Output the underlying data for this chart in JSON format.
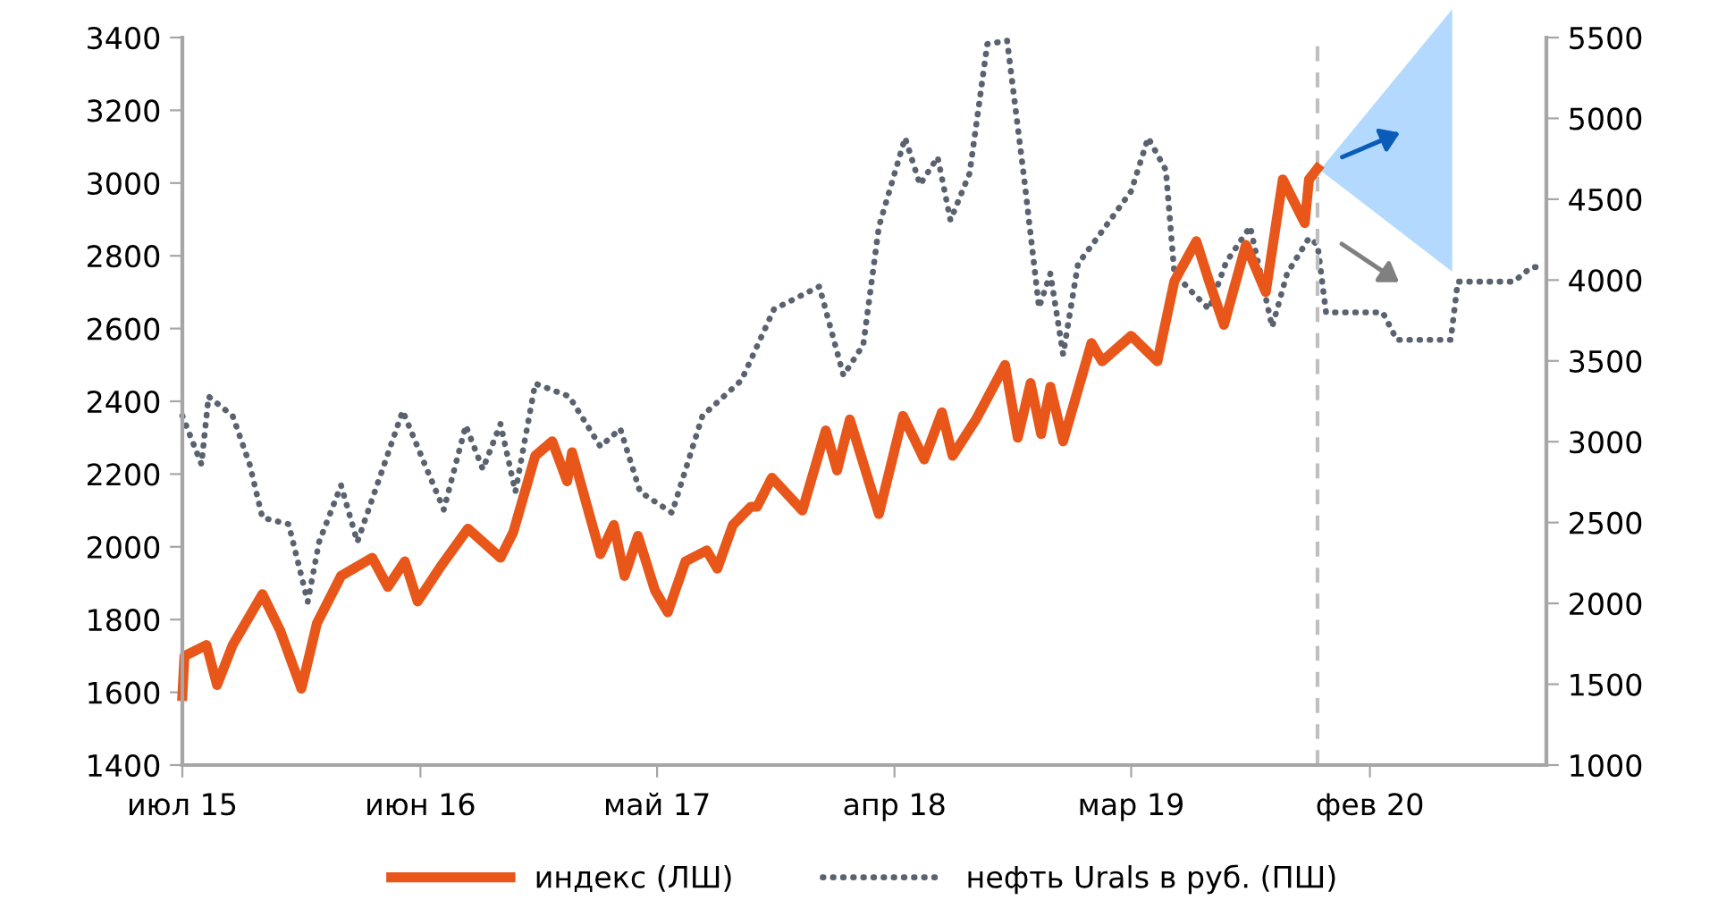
{
  "chart_data": {
    "type": "line",
    "xlim": [
      "2015-07-01",
      "2020-10-07"
    ],
    "xticks": [
      {
        "value": "2015-07-01",
        "label": "июл 15"
      },
      {
        "value": "2016-06-01",
        "label": "июн 16"
      },
      {
        "value": "2017-05-01",
        "label": "май 17"
      },
      {
        "value": "2018-04-01",
        "label": "апр 18"
      },
      {
        "value": "2019-03-01",
        "label": "мар 19"
      },
      {
        "value": "2020-02-01",
        "label": "фев 20"
      }
    ],
    "ylim": [
      1400,
      3400
    ],
    "yticks": [
      1400,
      1600,
      1800,
      2000,
      2200,
      2400,
      2600,
      2800,
      3000,
      3200,
      3400
    ],
    "y2lim": [
      1000,
      5500
    ],
    "y2ticks": [
      1000,
      1500,
      2000,
      2500,
      3000,
      3500,
      4000,
      4500,
      5000,
      5500
    ],
    "grid": false,
    "legend": "bottom",
    "ref_lines": [
      {
        "axis": "x",
        "value": "2019-11-19",
        "color": "#bfbfbf",
        "line_style": "dashed"
      }
    ],
    "series": [
      {
        "name": "индекс (ЛШ)",
        "color": "#e8561a",
        "line_style": "solid",
        "marker": "none",
        "x": [
          "2015-07-01",
          "2015-07-04",
          "2015-08-04",
          "2015-08-19",
          "2015-09-10",
          "2015-10-22",
          "2015-11-16",
          "2015-12-16",
          "2016-01-07",
          "2016-02-10",
          "2016-03-25",
          "2016-04-16",
          "2016-05-10",
          "2016-05-28",
          "2016-07-01",
          "2016-08-07",
          "2016-09-22",
          "2016-10-10",
          "2016-11-10",
          "2016-12-04",
          "2016-12-25",
          "2017-01-01",
          "2017-02-10",
          "2017-03-01",
          "2017-03-16",
          "2017-04-04",
          "2017-04-28",
          "2017-05-16",
          "2017-06-10",
          "2017-07-10",
          "2017-07-25",
          "2017-08-16",
          "2017-09-10",
          "2017-09-19",
          "2017-10-10",
          "2017-11-22",
          "2017-12-25",
          "2018-01-10",
          "2018-01-28",
          "2018-03-10",
          "2018-04-13",
          "2018-05-13",
          "2018-06-07",
          "2018-06-22",
          "2018-07-25",
          "2018-09-04",
          "2018-09-22",
          "2018-10-10",
          "2018-10-25",
          "2018-11-07",
          "2018-11-25",
          "2019-01-04",
          "2019-01-19",
          "2019-03-01",
          "2019-04-07",
          "2019-05-01",
          "2019-06-01",
          "2019-06-19",
          "2019-07-10",
          "2019-08-10",
          "2019-09-07",
          "2019-10-01",
          "2019-11-01",
          "2019-11-07",
          "2019-11-19"
        ],
        "values": [
          1590,
          1700,
          1730,
          1620,
          1730,
          1870,
          1770,
          1610,
          1790,
          1920,
          1970,
          1890,
          1960,
          1850,
          1950,
          2050,
          1970,
          2040,
          2250,
          2290,
          2180,
          2260,
          1980,
          2060,
          1920,
          2030,
          1880,
          1820,
          1960,
          1990,
          1940,
          2060,
          2110,
          2110,
          2190,
          2100,
          2320,
          2210,
          2350,
          2090,
          2360,
          2240,
          2370,
          2250,
          2350,
          2500,
          2300,
          2450,
          2310,
          2440,
          2290,
          2560,
          2510,
          2580,
          2510,
          2730,
          2840,
          2730,
          2610,
          2830,
          2700,
          3010,
          2890,
          3010,
          3040
        ]
      },
      {
        "name": "нефть Urals в руб. (ПШ)",
        "color": "#5a6270",
        "axis": "y2",
        "line_style": "dotted",
        "marker": "none",
        "x": [
          "2015-07-01",
          "2015-07-28",
          "2015-08-07",
          "2015-09-10",
          "2015-10-04",
          "2015-10-22",
          "2015-11-28",
          "2015-12-25",
          "2016-01-10",
          "2016-02-10",
          "2016-03-04",
          "2016-05-07",
          "2016-06-10",
          "2016-07-04",
          "2016-08-04",
          "2016-08-28",
          "2016-09-22",
          "2016-10-13",
          "2016-11-10",
          "2016-12-28",
          "2017-02-10",
          "2017-03-10",
          "2017-04-07",
          "2017-05-22",
          "2017-07-04",
          "2017-08-28",
          "2017-10-13",
          "2017-12-16",
          "2018-01-19",
          "2018-02-16",
          "2018-03-10",
          "2018-04-16",
          "2018-05-07",
          "2018-06-01",
          "2018-06-19",
          "2018-07-16",
          "2018-08-10",
          "2018-09-07",
          "2018-10-01",
          "2018-10-22",
          "2018-11-07",
          "2018-11-25",
          "2018-12-16",
          "2019-01-22",
          "2019-03-01",
          "2019-03-25",
          "2019-04-19",
          "2019-05-01",
          "2019-05-25",
          "2019-06-19",
          "2019-07-13",
          "2019-08-16",
          "2019-09-16",
          "2019-10-07",
          "2019-11-07",
          "2019-11-19",
          "2019-12-01",
          "2020-02-19",
          "2020-03-10",
          "2020-05-25",
          "2020-06-04",
          "2020-08-22",
          "2020-09-16",
          "2020-10-04"
        ],
        "values": [
          3160,
          2860,
          3280,
          3160,
          2860,
          2530,
          2490,
          2010,
          2380,
          2730,
          2380,
          3190,
          2830,
          2580,
          3100,
          2830,
          3110,
          2690,
          3360,
          3280,
          2970,
          3080,
          2690,
          2560,
          3160,
          3380,
          3820,
          3960,
          3410,
          3600,
          4330,
          4880,
          4590,
          4760,
          4370,
          4660,
          5460,
          5480,
          4630,
          3830,
          4040,
          3540,
          4100,
          4320,
          4550,
          4880,
          4680,
          4040,
          3930,
          3820,
          4110,
          4330,
          3710,
          4040,
          4260,
          4220,
          3800,
          3800,
          3630,
          3630,
          3990,
          3990,
          4080,
          4080
        ]
      }
    ]
  }
}
